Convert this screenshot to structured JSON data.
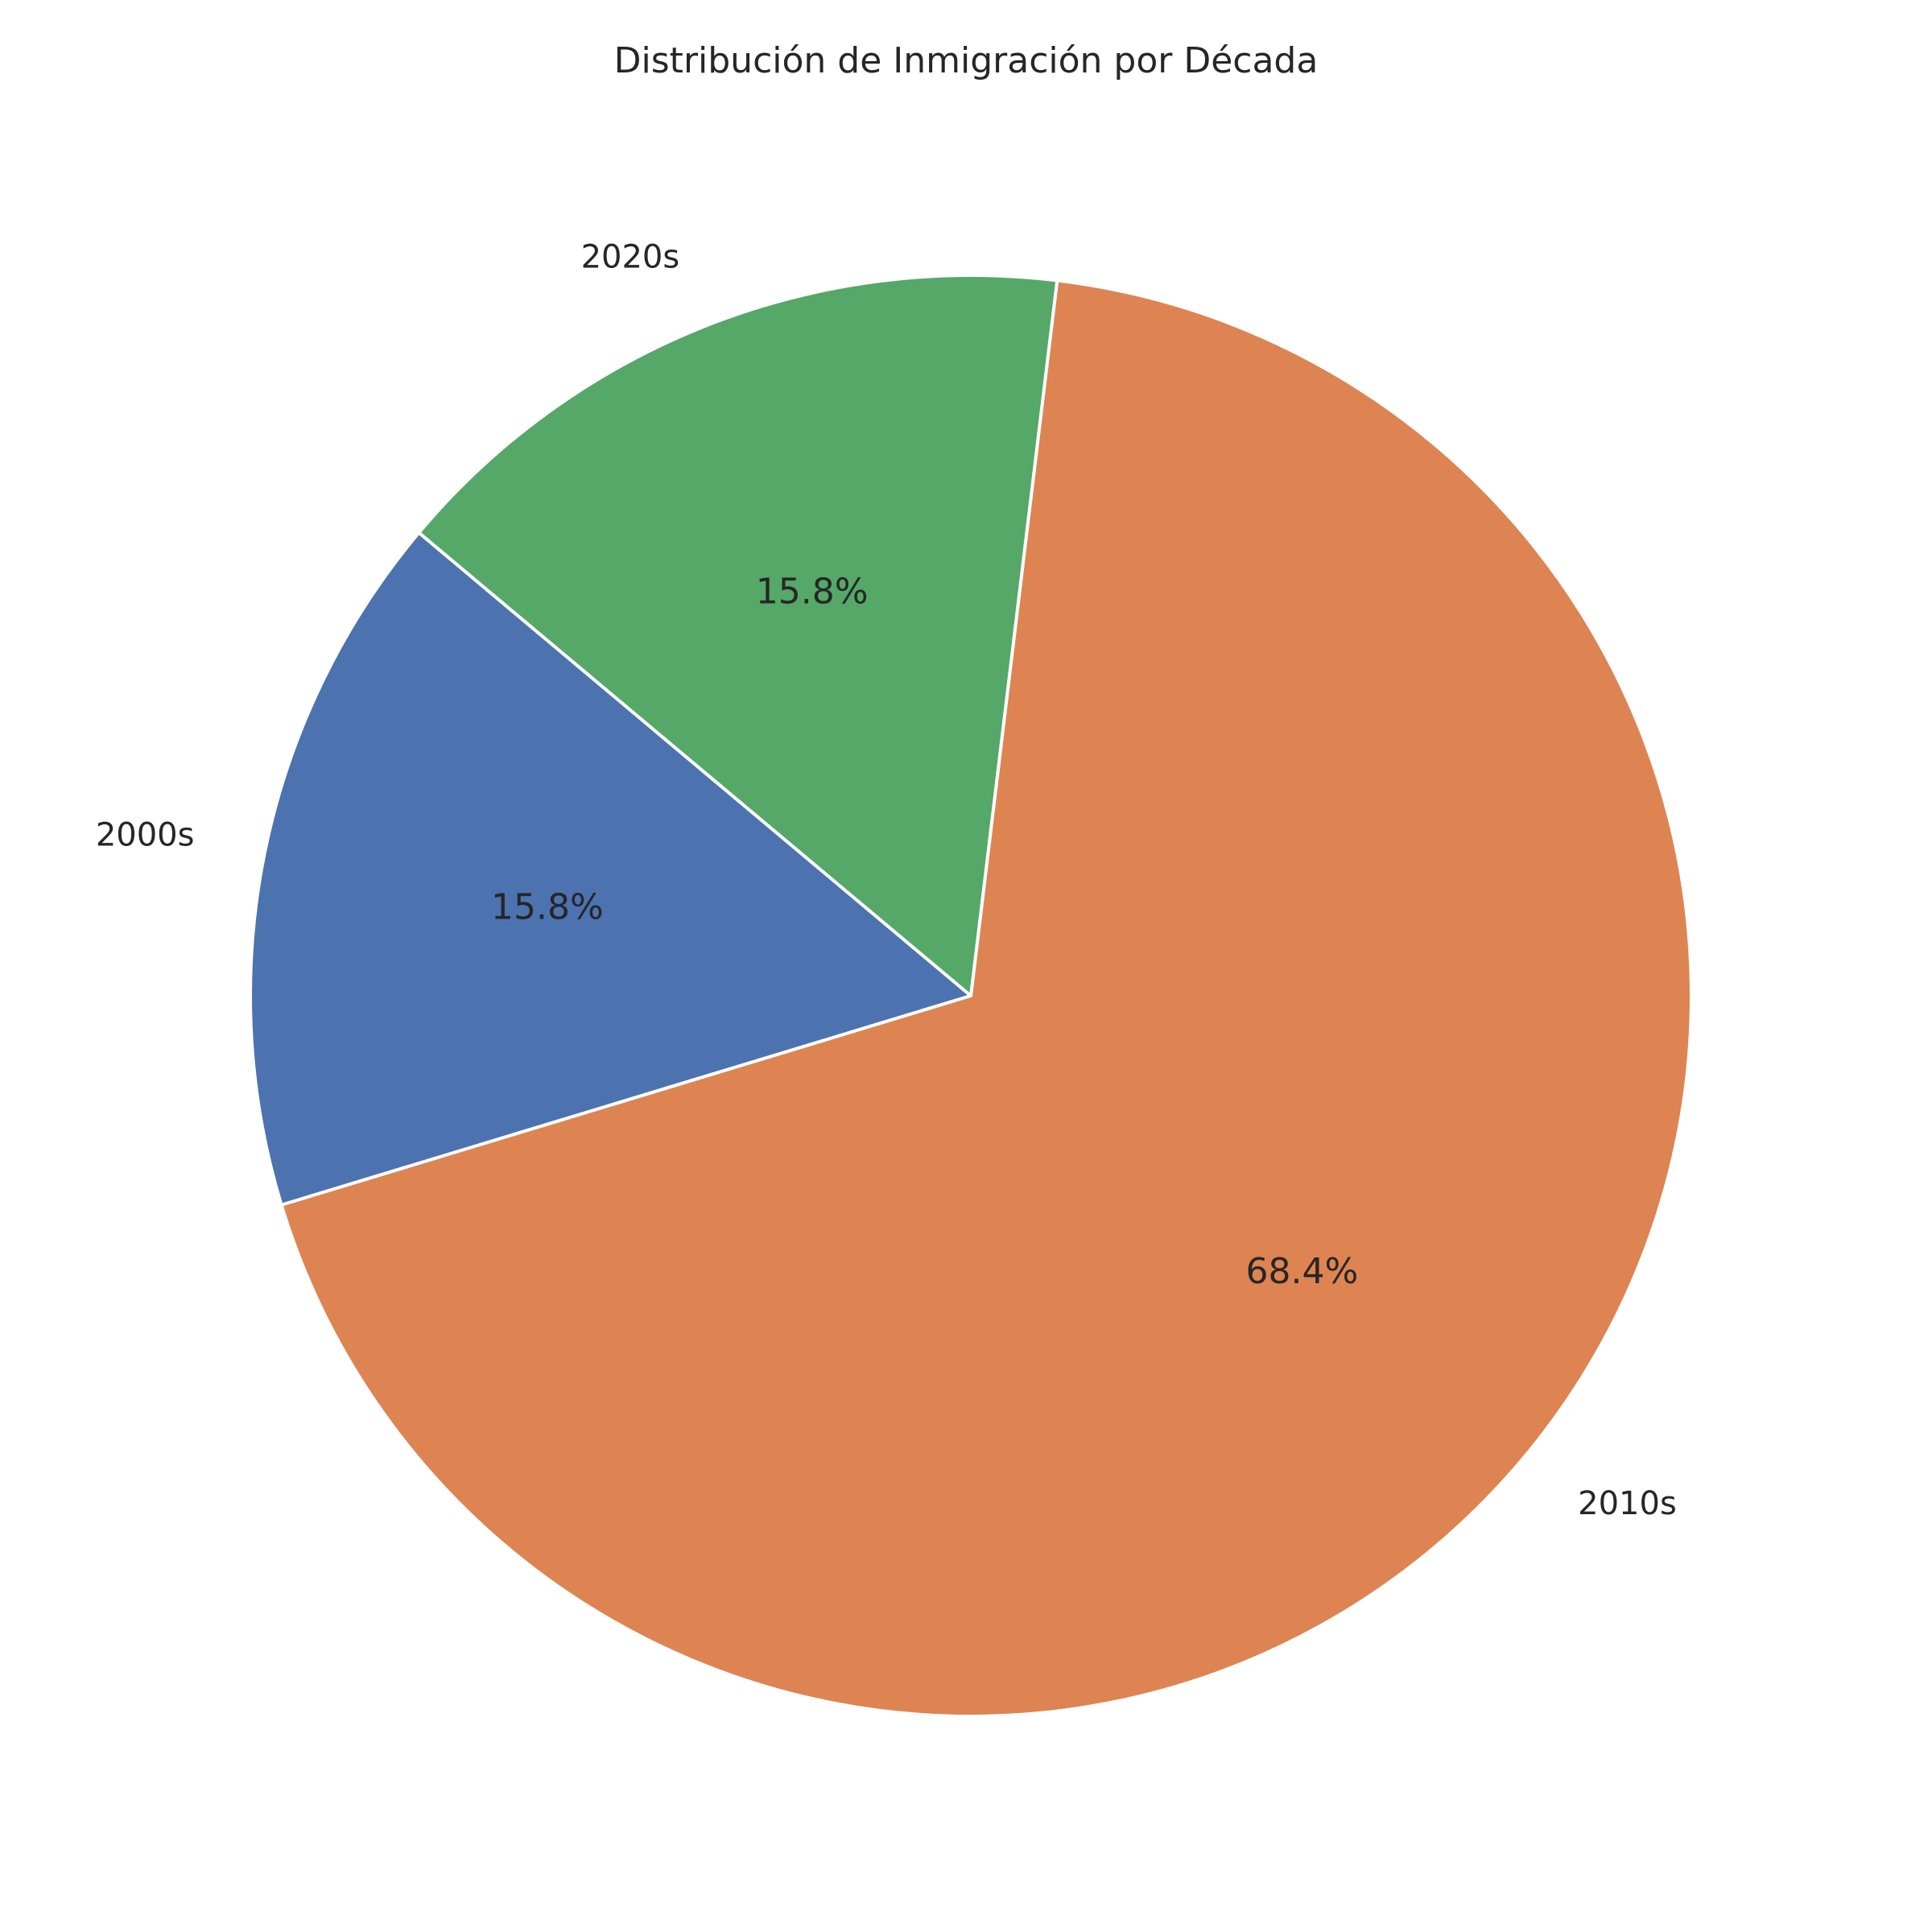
{
  "chart_data": {
    "type": "pie",
    "title": "Distribución de Inmigración por Década",
    "categories": [
      "2000s",
      "2010s",
      "2020s"
    ],
    "values": [
      15.8,
      68.4,
      15.8
    ],
    "percent_labels": [
      "15.8%",
      "68.4%",
      "15.8%"
    ],
    "colors": [
      "#4c72b0",
      "#dd8452",
      "#55a868"
    ],
    "start_angle_deg": 140,
    "direction": "counterclockwise"
  }
}
